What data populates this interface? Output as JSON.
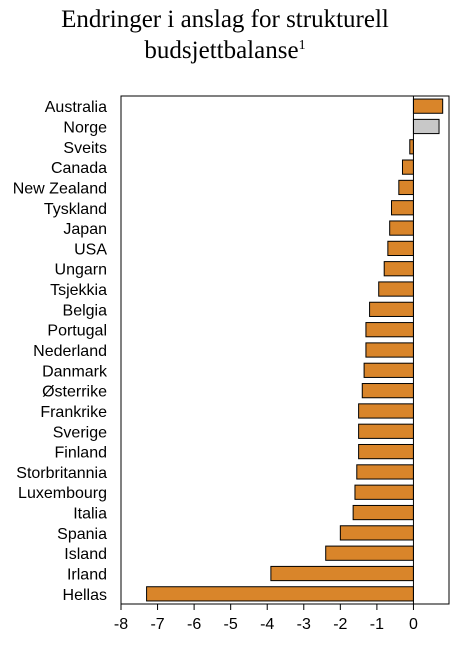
{
  "chart_data": {
    "type": "bar",
    "orientation": "horizontal",
    "title_line1": "Endringer i anslag for strukturell",
    "title_line2": "budsjettbalanse",
    "title_footnote": "1",
    "xlabel": "",
    "ylabel": "",
    "xlim": [
      -8,
      1
    ],
    "xticks": [
      -8,
      -7,
      -6,
      -5,
      -4,
      -3,
      -2,
      -1,
      0
    ],
    "grid": false,
    "legend": "none",
    "colors": {
      "default": "#D9852A",
      "highlight": "#C8C8C8",
      "outline": "#000000"
    },
    "categories": [
      "Australia",
      "Norge",
      "Sveits",
      "Canada",
      "New Zealand",
      "Tyskland",
      "Japan",
      "USA",
      "Ungarn",
      "Tsjekkia",
      "Belgia",
      "Portugal",
      "Nederland",
      "Danmark",
      "Østerrike",
      "Frankrike",
      "Sverige",
      "Finland",
      "Storbritannia",
      "Luxembourg",
      "Italia",
      "Spania",
      "Island",
      "Irland",
      "Hellas"
    ],
    "values": [
      0.8,
      0.7,
      -0.1,
      -0.3,
      -0.4,
      -0.6,
      -0.65,
      -0.7,
      -0.8,
      -0.95,
      -1.2,
      -1.3,
      -1.3,
      -1.35,
      -1.4,
      -1.5,
      -1.5,
      -1.5,
      -1.55,
      -1.6,
      -1.65,
      -2.0,
      -2.4,
      -3.9,
      -7.3
    ],
    "highlight": [
      "Norge"
    ]
  }
}
